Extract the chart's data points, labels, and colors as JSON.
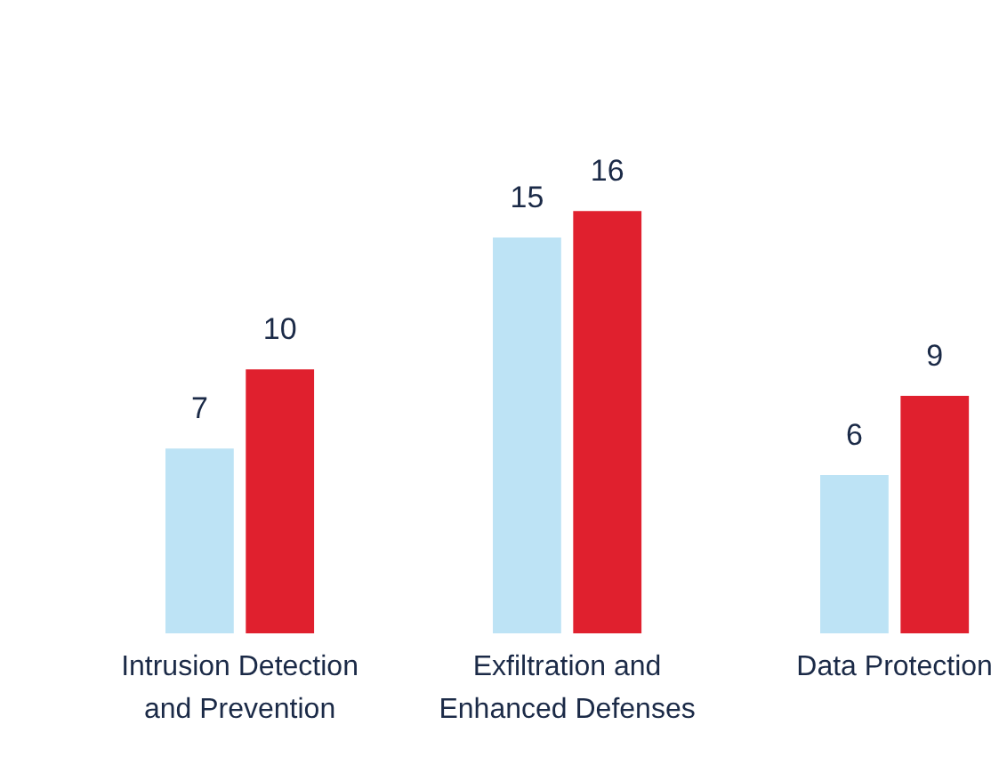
{
  "chart_data": {
    "type": "bar",
    "categories": [
      "Intrusion Detection and Prevention",
      "Exfiltration and Enhanced Defenses",
      "Data Protection"
    ],
    "series": [
      {
        "color": "#bde3f5",
        "values": [
          7,
          15,
          6
        ]
      },
      {
        "color": "#e0202e",
        "values": [
          10,
          16,
          9
        ]
      }
    ],
    "ylim": [
      0,
      24
    ],
    "data_labels": true,
    "tick_labels": "x",
    "grid": false
  }
}
